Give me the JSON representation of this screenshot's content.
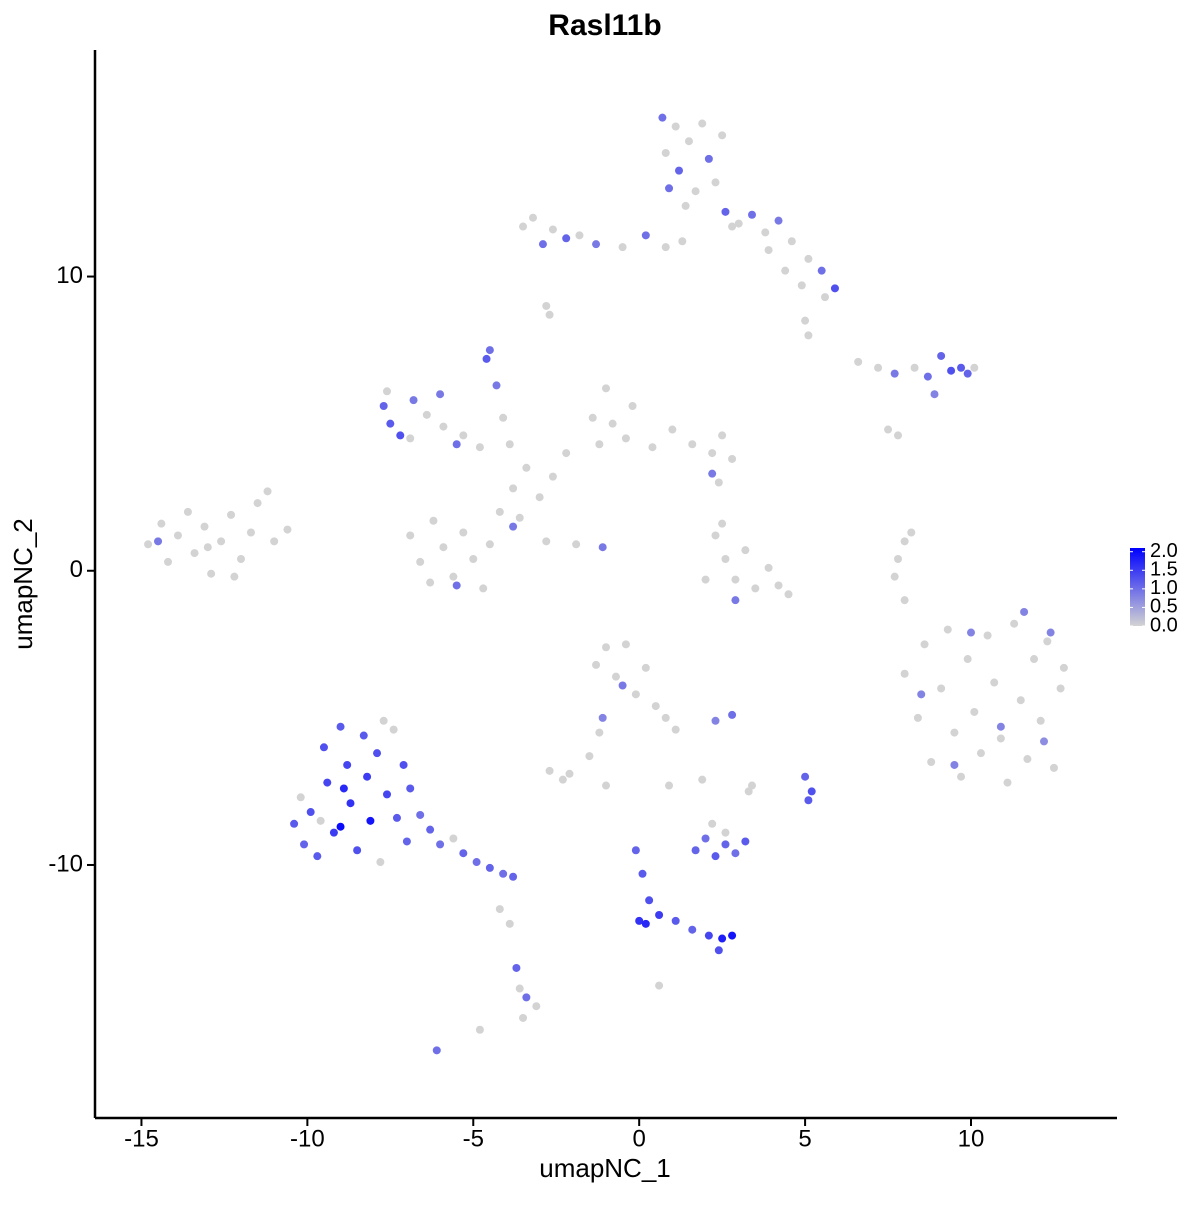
{
  "chart_data": {
    "type": "scatter",
    "title": "Rasl11b",
    "xlabel": "umapNC_1",
    "ylabel": "umapNC_2",
    "xlim": [
      -16.4,
      14.4
    ],
    "xticks": [
      -15,
      -10,
      -5,
      0,
      5,
      10
    ],
    "ylim": [
      -18.6,
      17.7
    ],
    "yticks": [
      -10,
      0,
      10
    ],
    "low_color": "#d3d3d3",
    "high_color": "#0000ff",
    "colorlim": [
      0,
      2.1
    ],
    "colorticks": [
      {
        "value": 0,
        "label": "0.0"
      },
      {
        "value": 0.5,
        "label": "0.5"
      },
      {
        "value": 1,
        "label": "1.0"
      },
      {
        "value": 1.5,
        "label": "1.5"
      },
      {
        "value": 2,
        "label": "2.0"
      }
    ],
    "x": [
      -14.8,
      -14.4,
      -14.2,
      -13.9,
      -13.6,
      -13.4,
      -13.1,
      -12.9,
      -12.6,
      -12.3,
      -12.0,
      -11.7,
      -11.5,
      -11.2,
      -11.0,
      -10.6,
      -12.2,
      -13.0,
      -14.5,
      -6.9,
      -6.6,
      -6.3,
      -5.9,
      -5.6,
      -5.3,
      -5.0,
      -4.7,
      -4.5,
      -5.5,
      -6.2,
      -4.2,
      -3.8,
      -3.4,
      -3.0,
      -2.6,
      -2.2,
      -3.6,
      -3.8,
      -2.8,
      -1.9,
      -1.1,
      -1.4,
      -1.0,
      -0.8,
      -0.4,
      -1.2,
      -0.2,
      0.4,
      1.0,
      1.6,
      2.2,
      2.5,
      2.8,
      2.2,
      -7.6,
      -7.7,
      -7.5,
      -7.2,
      -6.8,
      -6.4,
      -5.9,
      -5.3,
      -4.8,
      -6.0,
      -5.5,
      -6.9,
      -4.5,
      -4.6,
      -4.3,
      -4.1,
      -3.9,
      0.7,
      0.8,
      1.1,
      1.2,
      1.5,
      1.7,
      1.9,
      2.1,
      2.3,
      2.5,
      2.6,
      1.4,
      0.9,
      2.8,
      -3.5,
      -3.2,
      -2.9,
      -2.6,
      -2.2,
      -1.8,
      -1.3,
      -0.5,
      0.2,
      0.8,
      1.3,
      3.0,
      3.4,
      3.8,
      4.2,
      4.6,
      4.4,
      5.1,
      5.5,
      5.9,
      5.6,
      4.9,
      3.9,
      5.0,
      6.6,
      7.2,
      7.7,
      8.3,
      8.7,
      9.1,
      9.4,
      9.7,
      9.9,
      10.1,
      8.9,
      7.5,
      7.8,
      -2.8,
      -2.7,
      5.1,
      2.3,
      2.6,
      2.9,
      3.2,
      3.5,
      3.9,
      4.2,
      4.5,
      2.0,
      2.9,
      2.5,
      2.4,
      8.0,
      7.8,
      7.7,
      8.2,
      8.0,
      8.0,
      8.4,
      8.6,
      8.8,
      9.1,
      9.3,
      9.5,
      9.7,
      9.9,
      10.1,
      10.3,
      10.5,
      10.7,
      10.9,
      11.1,
      11.3,
      11.5,
      11.7,
      11.9,
      12.1,
      12.3,
      12.5,
      12.7,
      12.8,
      10.0,
      11.6,
      10.9,
      9.5,
      8.5,
      12.2,
      12.4,
      -10.4,
      -10.1,
      -9.9,
      -9.7,
      -9.5,
      -9.4,
      -9.2,
      -9.0,
      -9.0,
      -8.8,
      -8.7,
      -8.5,
      -8.3,
      -8.2,
      -8.1,
      -7.9,
      -7.8,
      -7.6,
      -7.4,
      -7.3,
      -7.1,
      -7.0,
      -6.9,
      -6.6,
      -6.3,
      -6.0,
      -5.6,
      -5.3,
      -4.9,
      -4.5,
      -4.1,
      -3.8,
      -10.2,
      -9.6,
      -8.9,
      -7.7,
      -4.2,
      -3.9,
      -3.7,
      -3.6,
      -3.4,
      -3.5,
      -3.1,
      -4.8,
      -6.1,
      -1.3,
      -1.0,
      -0.7,
      -0.4,
      -0.1,
      0.2,
      0.5,
      0.8,
      1.1,
      -0.5,
      -1.2,
      -1.5,
      -2.1,
      -2.7,
      -2.3,
      -1.1,
      2.8,
      2.3,
      1.9,
      0.9,
      -1.0,
      5.0,
      5.2,
      5.1,
      3.3,
      1.7,
      2.0,
      2.3,
      2.6,
      2.9,
      3.2,
      2.2,
      2.6,
      3.4,
      -0.1,
      0.1,
      0.3,
      0.0,
      0.2,
      0.6,
      1.1,
      1.6,
      2.1,
      2.5,
      2.8,
      2.4,
      0.6
    ],
    "values": [
      0.9,
      1.6,
      0.3,
      1.2,
      2.0,
      0.6,
      1.5,
      -0.1,
      1.0,
      1.9,
      0.4,
      1.3,
      2.3,
      2.7,
      1.0,
      1.4,
      -0.2,
      0.8,
      1.0,
      1.2,
      0.3,
      -0.4,
      0.8,
      -0.2,
      1.3,
      0.4,
      -0.6,
      0.9,
      -0.5,
      1.7,
      2.0,
      2.8,
      3.5,
      2.5,
      3.2,
      4.0,
      1.8,
      1.5,
      1.0,
      0.9,
      0.8,
      5.2,
      6.2,
      5.0,
      4.5,
      4.3,
      5.6,
      4.2,
      4.8,
      4.3,
      4.0,
      4.6,
      3.8,
      3.3,
      6.1,
      5.6,
      5.0,
      4.6,
      5.8,
      5.3,
      4.9,
      4.6,
      4.2,
      6.0,
      4.3,
      4.5,
      7.5,
      7.2,
      6.3,
      5.2,
      4.3,
      15.4,
      14.2,
      15.1,
      13.6,
      14.6,
      12.9,
      15.2,
      14.0,
      13.2,
      14.8,
      12.2,
      12.4,
      13.0,
      11.7,
      11.7,
      12.0,
      11.1,
      11.6,
      11.3,
      11.4,
      11.1,
      11.0,
      11.4,
      11.0,
      11.2,
      11.8,
      12.1,
      11.5,
      11.9,
      11.2,
      10.2,
      10.6,
      10.2,
      9.6,
      9.3,
      9.7,
      10.9,
      8.5,
      7.1,
      6.9,
      6.7,
      6.9,
      6.6,
      7.3,
      6.8,
      6.9,
      6.7,
      6.9,
      6.0,
      4.8,
      4.6,
      9.0,
      8.7,
      8.0,
      1.2,
      0.4,
      -0.3,
      0.7,
      -0.6,
      0.1,
      -0.5,
      -0.8,
      -0.3,
      -1.0,
      1.6,
      3.0,
      1.0,
      0.4,
      -0.2,
      1.3,
      -1.0,
      -3.5,
      -5.0,
      -2.5,
      -6.5,
      -4.0,
      -2.0,
      -5.5,
      -7.0,
      -3.0,
      -4.8,
      -6.2,
      -2.2,
      -3.8,
      -5.7,
      -7.2,
      -1.8,
      -4.4,
      -6.4,
      -3.0,
      -5.1,
      -2.4,
      -6.7,
      -4.0,
      -3.3,
      -2.1,
      -1.4,
      -5.3,
      -6.6,
      -4.2,
      -5.8,
      -2.1,
      -8.6,
      -9.3,
      -8.2,
      -9.7,
      -6.0,
      -7.2,
      -8.9,
      -5.3,
      -8.7,
      -6.6,
      -7.9,
      -9.5,
      -5.6,
      -7.0,
      -8.5,
      -6.2,
      -9.9,
      -7.6,
      -5.4,
      -8.4,
      -6.6,
      -9.2,
      -7.4,
      -8.3,
      -8.8,
      -9.3,
      -9.1,
      -9.6,
      -9.9,
      -10.1,
      -10.3,
      -10.4,
      -7.7,
      -8.5,
      -7.4,
      -5.1,
      -11.5,
      -12.0,
      -13.5,
      -14.2,
      -14.5,
      -15.2,
      -14.8,
      -15.6,
      -16.3,
      -3.2,
      -2.6,
      -3.6,
      -2.5,
      -4.2,
      -3.3,
      -4.6,
      -5.0,
      -5.4,
      -3.9,
      -5.5,
      -6.3,
      -6.9,
      -6.8,
      -7.1,
      -5.0,
      -4.9,
      -5.1,
      -7.1,
      -7.3,
      -7.3,
      -7.0,
      -7.5,
      -7.8,
      -7.5,
      -9.5,
      -9.1,
      -9.7,
      -9.3,
      -9.6,
      -9.2,
      -8.6,
      -8.9,
      -7.3,
      -9.5,
      -10.3,
      -11.2,
      -11.9,
      -12.0,
      -11.7,
      -11.9,
      -12.2,
      -12.4,
      -12.5,
      -12.4,
      -12.9,
      -14.1
    ],
    "color_values": [
      0,
      0,
      0,
      0,
      0,
      0,
      0,
      0,
      0,
      0,
      0,
      0,
      0,
      0,
      0,
      0,
      0,
      0,
      0.9,
      0,
      0,
      0,
      0,
      0,
      0,
      0,
      0,
      0,
      1.0,
      0,
      0,
      0,
      0,
      0,
      0,
      0,
      0,
      0.9,
      0,
      0,
      0.9,
      0,
      0,
      0,
      0,
      0,
      0,
      0,
      0,
      0,
      0,
      0,
      0,
      0.9,
      0,
      1.1,
      1.2,
      1.3,
      0.9,
      0,
      0,
      0,
      0,
      0.9,
      1.0,
      0,
      1.0,
      1.2,
      0.9,
      0,
      0,
      1.0,
      0,
      0,
      1.1,
      0,
      0,
      0,
      1.0,
      0,
      0,
      1.1,
      0,
      1.0,
      0,
      0,
      0,
      1.0,
      0,
      1.1,
      0,
      0.9,
      0,
      1.0,
      0,
      0,
      0,
      1.0,
      0,
      0.9,
      0,
      0,
      0,
      1.0,
      1.3,
      0,
      0,
      0,
      0,
      0,
      0,
      0.9,
      0,
      1.0,
      1.1,
      1.3,
      1.2,
      1.1,
      0,
      0.8,
      0,
      0,
      0,
      0,
      0,
      0,
      0,
      0,
      0,
      0,
      0,
      0,
      0,
      0,
      0.9,
      0,
      0,
      0,
      0,
      0,
      0,
      0,
      0,
      0,
      0,
      0,
      0,
      0,
      0,
      0,
      0,
      0,
      0,
      0,
      0,
      0,
      0,
      0,
      0,
      0,
      0,
      0,
      0,
      0,
      0,
      0,
      0.8,
      0.8,
      0.8,
      0.8,
      0.8,
      0.7,
      0.8,
      1.2,
      1.1,
      1.3,
      1.2,
      1.3,
      1.4,
      1.5,
      1.2,
      2.0,
      1.4,
      1.6,
      1.3,
      1.2,
      1.5,
      1.9,
      1.3,
      0,
      1.4,
      0,
      1.2,
      1.3,
      1.1,
      1.2,
      1.0,
      1.1,
      1.0,
      0,
      1.1,
      1.0,
      1.1,
      1.0,
      1.1,
      0,
      0,
      1.7,
      0,
      0,
      0,
      1.1,
      0,
      1.0,
      0,
      0,
      0,
      1.0,
      0,
      0,
      0,
      0,
      0,
      0,
      0,
      0,
      0,
      0.9,
      0,
      0,
      0,
      0,
      0,
      0.8,
      1.0,
      0.8,
      0,
      0,
      0,
      1.1,
      1.3,
      1.2,
      0,
      1.1,
      1.0,
      1.2,
      1.1,
      1.0,
      1.2,
      0,
      0,
      0,
      1.1,
      1.2,
      1.3,
      1.6,
      1.7,
      1.5,
      1.2,
      1.1,
      1.4,
      1.8,
      1.9,
      1.3,
      0
    ]
  }
}
